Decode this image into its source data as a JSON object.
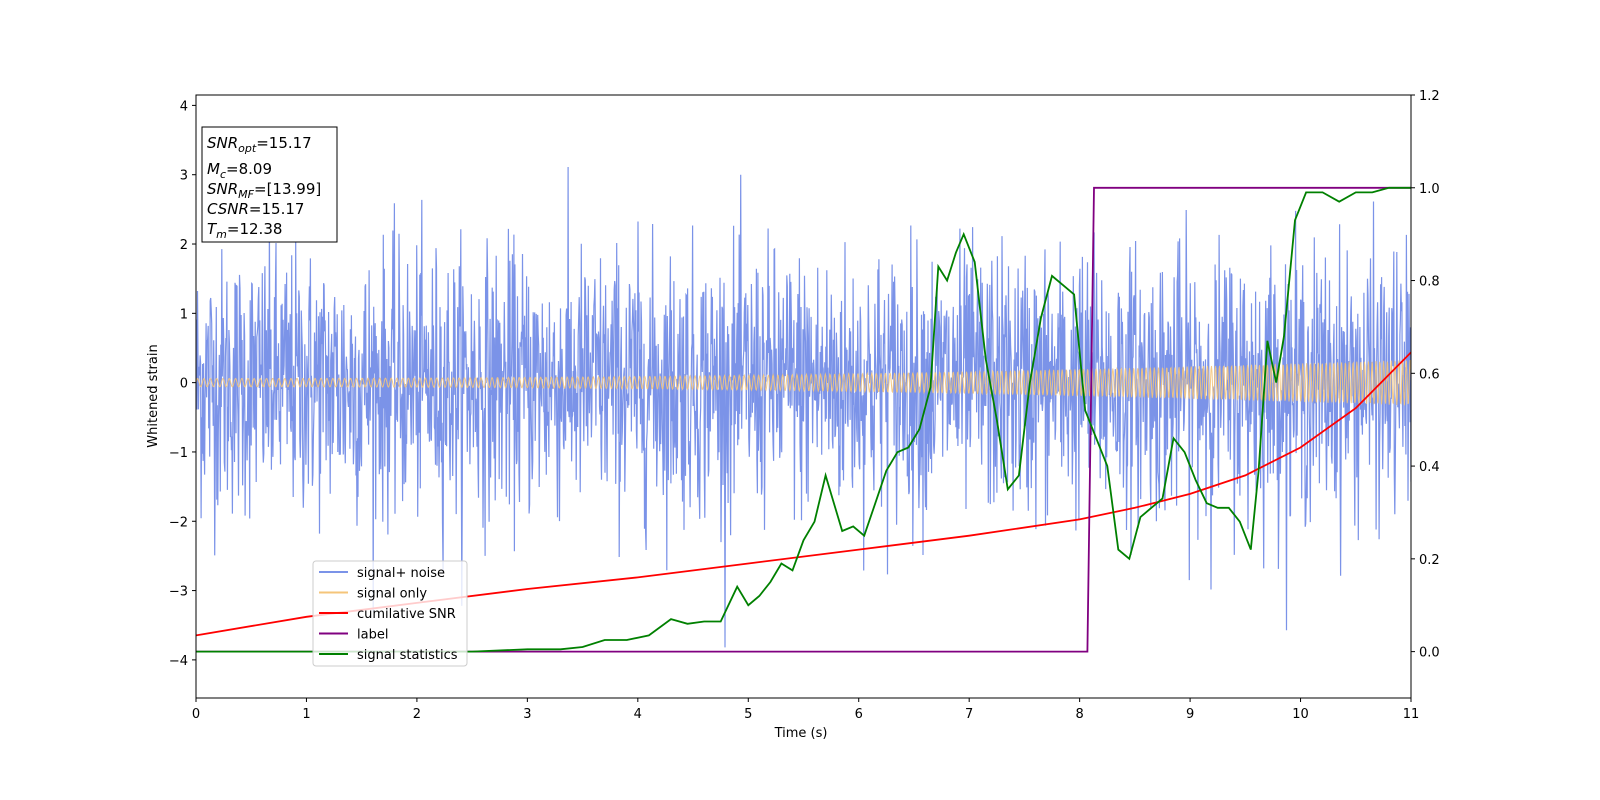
{
  "chart_data": {
    "type": "line",
    "xlabel": "Time (s)",
    "ylabel": "Whitened strain",
    "xlim": [
      0,
      11
    ],
    "ylim_left": [
      -4.55,
      4.15
    ],
    "ylim_right": [
      -0.1,
      1.2
    ],
    "x_ticks": [
      "0",
      "1",
      "2",
      "3",
      "4",
      "5",
      "6",
      "7",
      "8",
      "9",
      "10",
      "11"
    ],
    "y_ticks_left": [
      "−4",
      "−3",
      "−2",
      "−1",
      "0",
      "1",
      "2",
      "3",
      "4"
    ],
    "y_ticks_right": [
      "0.0",
      "0.2",
      "0.4",
      "0.6",
      "0.8",
      "1.0",
      "1.2"
    ],
    "grid": false,
    "legend_position": "lower-left",
    "info_box": {
      "snr_opt": {
        "base": "SNR",
        "sub": "opt",
        "value": "=15.17"
      },
      "mc": {
        "base": "M",
        "sub": "c",
        "value": "=8.09"
      },
      "snr_mf": {
        "base": "SNR",
        "sub": "MF",
        "value": "=[13.99]"
      },
      "csnr": {
        "base": "CSNR",
        "sub": "",
        "value": "=15.17"
      },
      "tm": {
        "base": "T",
        "sub": "m",
        "value": "=12.38"
      }
    },
    "series": [
      {
        "name": "signal+ noise",
        "color": "#7b93e8",
        "axis": "left",
        "kind": "noise",
        "amplitude_std": 0.95
      },
      {
        "name": "signal only",
        "color": "#f5c57a",
        "axis": "left",
        "kind": "chirp",
        "amplitude_start": 0.06,
        "amplitude_end": 0.33,
        "cycles": 190
      },
      {
        "name": "cumilative SNR",
        "color": "#ff0000",
        "axis": "right",
        "x": [
          0,
          1,
          2,
          3,
          4,
          5,
          6,
          7,
          8,
          8.5,
          9,
          9.5,
          10,
          10.5,
          11
        ],
        "y": [
          0.035,
          0.075,
          0.105,
          0.135,
          0.16,
          0.19,
          0.22,
          0.25,
          0.285,
          0.31,
          0.34,
          0.38,
          0.44,
          0.525,
          0.645
        ]
      },
      {
        "name": "label",
        "color": "#800080",
        "axis": "right",
        "x": [
          0,
          8.07,
          8.13,
          11
        ],
        "y": [
          0.0,
          0.0,
          1.0,
          1.0
        ]
      },
      {
        "name": "signal statistics",
        "color": "#008000",
        "axis": "right",
        "x": [
          0,
          0.5,
          1,
          1.5,
          2,
          2.5,
          3,
          3.3,
          3.5,
          3.7,
          3.9,
          4.1,
          4.3,
          4.45,
          4.6,
          4.75,
          4.9,
          5.0,
          5.1,
          5.2,
          5.3,
          5.4,
          5.5,
          5.6,
          5.7,
          5.75,
          5.85,
          5.95,
          6.05,
          6.15,
          6.25,
          6.35,
          6.45,
          6.55,
          6.65,
          6.72,
          6.8,
          6.88,
          6.95,
          7.05,
          7.15,
          7.25,
          7.35,
          7.45,
          7.55,
          7.65,
          7.75,
          7.85,
          7.95,
          8.05,
          8.15,
          8.25,
          8.35,
          8.45,
          8.55,
          8.65,
          8.75,
          8.85,
          8.95,
          9.05,
          9.15,
          9.25,
          9.35,
          9.45,
          9.55,
          9.62,
          9.7,
          9.78,
          9.85,
          9.95,
          10.05,
          10.2,
          10.35,
          10.5,
          10.65,
          10.8,
          11.0
        ],
        "y": [
          0.0,
          0.0,
          0.0,
          0.0,
          0.0,
          0.0,
          0.005,
          0.005,
          0.01,
          0.025,
          0.025,
          0.035,
          0.07,
          0.06,
          0.065,
          0.065,
          0.14,
          0.1,
          0.12,
          0.15,
          0.19,
          0.175,
          0.24,
          0.28,
          0.38,
          0.34,
          0.26,
          0.27,
          0.25,
          0.32,
          0.39,
          0.43,
          0.44,
          0.48,
          0.57,
          0.83,
          0.8,
          0.86,
          0.9,
          0.84,
          0.63,
          0.5,
          0.35,
          0.38,
          0.58,
          0.72,
          0.81,
          0.79,
          0.77,
          0.52,
          0.46,
          0.4,
          0.22,
          0.2,
          0.29,
          0.31,
          0.33,
          0.46,
          0.43,
          0.37,
          0.32,
          0.31,
          0.31,
          0.28,
          0.22,
          0.39,
          0.67,
          0.58,
          0.68,
          0.93,
          0.99,
          0.99,
          0.97,
          0.99,
          0.99,
          1.0,
          1.0
        ]
      }
    ]
  }
}
